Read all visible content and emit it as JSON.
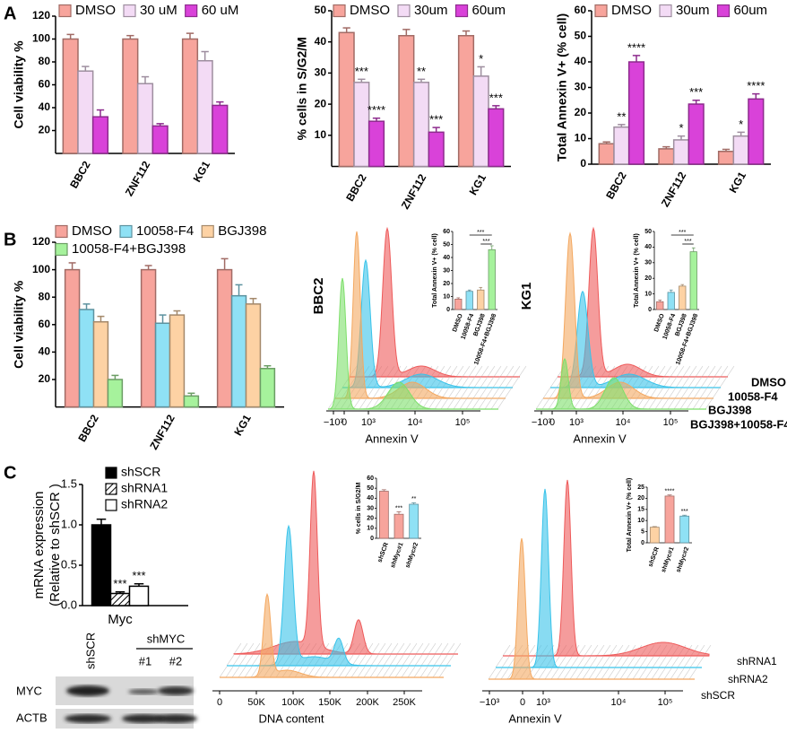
{
  "panel_labels": [
    "A",
    "B",
    "C"
  ],
  "chart_data": [
    {
      "type": "bar",
      "ylabel": "Cell viability %",
      "categories": [
        "BBC2",
        "ZNF112",
        "KG1"
      ],
      "ylim": [
        0,
        120
      ],
      "yticks": [
        20,
        40,
        60,
        80,
        100,
        120
      ],
      "series": [
        {
          "name": "DMSO",
          "color": "#f7a49c",
          "values": [
            100,
            100,
            100
          ],
          "errors": [
            4,
            3,
            5
          ]
        },
        {
          "name": "30 uM",
          "color": "#f3dbf5",
          "values": [
            72,
            61,
            81
          ],
          "errors": [
            4,
            6,
            8
          ]
        },
        {
          "name": "60 uM",
          "color": "#d942d9",
          "values": [
            32,
            24,
            42
          ],
          "errors": [
            6,
            2,
            3
          ]
        }
      ]
    },
    {
      "type": "bar",
      "ylabel": "% cells in S/G2/M",
      "categories": [
        "BBC2",
        "ZNF112",
        "KG1"
      ],
      "ylim": [
        0,
        50
      ],
      "yticks": [
        10,
        20,
        30,
        40,
        50
      ],
      "series": [
        {
          "name": "DMSO",
          "color": "#f7a49c",
          "values": [
            43,
            42,
            42
          ],
          "errors": [
            1.5,
            2,
            1.5
          ]
        },
        {
          "name": "30um",
          "color": "#f3dbf5",
          "values": [
            27,
            27,
            29
          ],
          "errors": [
            1,
            1,
            3
          ],
          "annotations": [
            "***",
            "**",
            "*"
          ]
        },
        {
          "name": "60um",
          "color": "#d942d9",
          "values": [
            14.5,
            11,
            18.5
          ],
          "errors": [
            1,
            1.5,
            1
          ],
          "annotations": [
            "****",
            "***",
            "***"
          ]
        }
      ]
    },
    {
      "type": "bar",
      "ylabel": "Total Annexin V+ (% cell)",
      "categories": [
        "BBC2",
        "ZNF112",
        "KG1"
      ],
      "ylim": [
        0,
        60
      ],
      "yticks": [
        0,
        10,
        20,
        30,
        40,
        50,
        60
      ],
      "series": [
        {
          "name": "DMSO",
          "color": "#f7a49c",
          "values": [
            8,
            6,
            5
          ],
          "errors": [
            0.7,
            0.8,
            0.8
          ]
        },
        {
          "name": "30um",
          "color": "#f3dbf5",
          "values": [
            14.5,
            9.5,
            11
          ],
          "errors": [
            1,
            1.5,
            1.5
          ],
          "annotations": [
            "**",
            "*",
            "*"
          ]
        },
        {
          "name": "60um",
          "color": "#d942d9",
          "values": [
            40,
            23.5,
            25.5
          ],
          "errors": [
            2.5,
            1.5,
            2
          ],
          "annotations": [
            "****",
            "***",
            "****"
          ]
        }
      ]
    },
    {
      "type": "bar",
      "ylabel": "Cell viability %",
      "categories": [
        "BBC2",
        "ZNF112",
        "KG1"
      ],
      "ylim": [
        0,
        120
      ],
      "yticks": [
        20,
        40,
        60,
        80,
        100,
        120
      ],
      "series": [
        {
          "name": "DMSO",
          "color": "#f7a49c",
          "values": [
            100,
            100,
            100
          ],
          "errors": [
            5,
            3,
            8
          ]
        },
        {
          "name": "10058-F4",
          "color": "#8fe1f5",
          "values": [
            71,
            61,
            81
          ],
          "errors": [
            4,
            6,
            8
          ]
        },
        {
          "name": "BGJ398",
          "color": "#fdd2a4",
          "values": [
            62,
            67,
            75
          ],
          "errors": [
            4,
            3,
            4
          ]
        },
        {
          "name": "10058-F4+BGJ398",
          "color": "#a6f29c",
          "values": [
            20,
            8,
            28
          ],
          "errors": [
            3,
            2,
            2
          ]
        }
      ]
    },
    {
      "type": "bar",
      "ylabel": "Total Annexin V+ (% cell)",
      "categories": [
        "DMSO",
        "10058-F4",
        "BGJ398",
        "10058-F4+BGJ398"
      ],
      "values": [
        8,
        14,
        15,
        46
      ],
      "errors": [
        1,
        1,
        2,
        3
      ],
      "colors": [
        "#f7a49c",
        "#8fe1f5",
        "#fdd2a4",
        "#a6f29c"
      ],
      "ylim": [
        0,
        60
      ],
      "yticks": [
        0,
        10,
        20,
        30,
        40,
        50,
        60
      ],
      "annotations": [
        "***",
        "***"
      ]
    },
    {
      "type": "bar",
      "ylabel": "Total Annexin V+ (% cell)",
      "categories": [
        "DMSO",
        "10058-F4",
        "BGJ398",
        "10058-F4+BGJ398"
      ],
      "values": [
        5,
        11,
        15,
        37
      ],
      "errors": [
        1,
        1.5,
        1,
        2.5
      ],
      "colors": [
        "#f7a49c",
        "#8fe1f5",
        "#fdd2a4",
        "#a6f29c"
      ],
      "ylim": [
        0,
        50
      ],
      "yticks": [
        0,
        10,
        20,
        30,
        40,
        50
      ],
      "annotations": [
        "***",
        "***"
      ]
    },
    {
      "type": "bar",
      "ylabel": [
        "mRNA expression",
        "(Relative to shSCR )"
      ],
      "categories": [
        "Myc"
      ],
      "edgecolor": "#000000",
      "ylim": [
        0,
        1.5
      ],
      "yticks": [
        {
          "value": 0,
          "label": "0.0"
        },
        {
          "value": 0.5,
          "label": "0.5"
        },
        {
          "value": 1,
          "label": "1.0"
        },
        {
          "value": 1.5,
          "label": "1.5"
        }
      ],
      "series": [
        {
          "name": "shSCR",
          "color": "#000000",
          "values": [
            1.0
          ],
          "errors": [
            0.07
          ]
        },
        {
          "name": "shRNA1",
          "color": "#ffffff",
          "hatch": true,
          "values": [
            0.15
          ],
          "errors": [
            0.02
          ],
          "annotations": [
            "***"
          ]
        },
        {
          "name": "shRNA2",
          "color": "#ffffff",
          "values": [
            0.24
          ],
          "errors": [
            0.03
          ],
          "annotations": [
            "***"
          ]
        }
      ]
    },
    {
      "type": "bar",
      "ylabel": "% cells in S/G2/M",
      "categories": [
        "shSCR",
        "shMyc#1",
        "shMyc#2"
      ],
      "values": [
        47,
        24,
        34
      ],
      "errors": [
        1.5,
        2.5,
        1.5
      ],
      "colors": [
        "#f7a49c",
        "#f7a49c",
        "#8fe1f5"
      ],
      "ylim": [
        0,
        60
      ],
      "yticks": [
        0,
        10,
        20,
        30,
        40,
        50,
        60
      ],
      "annotations": [
        null,
        "***",
        "**"
      ]
    },
    {
      "type": "bar",
      "ylabel": "Total Annexin V+ (% cell)",
      "categories": [
        "shSCR",
        "shMyc#1",
        "shMyc#2"
      ],
      "values": [
        7,
        21,
        12
      ],
      "errors": [
        0.3,
        0.5,
        0.4
      ],
      "colors": [
        "#fdd2a4",
        "#f7a49c",
        "#8fe1f5"
      ],
      "ylim": [
        0,
        25
      ],
      "yticks": [
        0,
        5,
        10,
        15,
        20,
        25
      ],
      "annotations": [
        null,
        "****",
        "***"
      ]
    }
  ],
  "flow": {
    "row_labels": [
      "BBC2",
      "KG1"
    ],
    "annexin_xticks": [
      "−10³",
      "0",
      "10³",
      "10⁴",
      "10⁵"
    ],
    "annexin_xlabel": "Annexin V",
    "b_legend": [
      "DMSO",
      "10058-F4",
      "BGJ398",
      "BGJ398+10058-F4"
    ],
    "dna_xticks": [
      "0",
      "50K",
      "100K",
      "150K",
      "200K",
      "250K"
    ],
    "dna_xlabel": "DNA content",
    "c_legend": [
      "shRNA1",
      "shRNA2",
      "shSCR"
    ]
  },
  "blot": {
    "lane": "shSCR",
    "group": "shMYC",
    "sublanes": [
      "#1",
      "#2"
    ],
    "rows": [
      "MYC",
      "ACTB"
    ]
  }
}
